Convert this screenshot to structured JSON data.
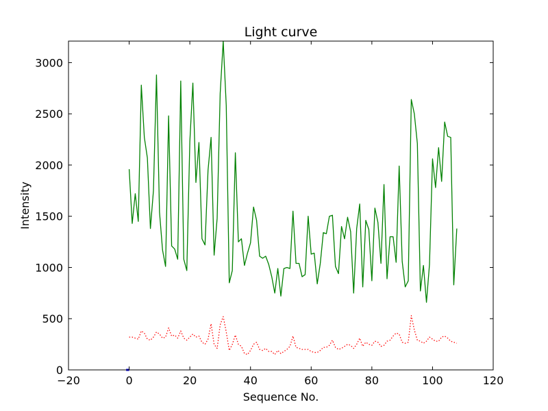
{
  "chart_data": {
    "type": "line",
    "title": "Light curve",
    "xlabel": "Sequence No.",
    "ylabel": "Intensity",
    "xlim": [
      -20,
      120
    ],
    "ylim": [
      0,
      3210
    ],
    "xticks": [
      -20,
      0,
      20,
      40,
      60,
      80,
      100,
      120
    ],
    "yticks": [
      0,
      500,
      1000,
      1500,
      2000,
      2500,
      3000
    ],
    "xtick_labels": [
      "−20",
      "0",
      "20",
      "40",
      "60",
      "80",
      "100",
      "120"
    ],
    "ytick_labels": [
      "0",
      "500",
      "1000",
      "1500",
      "2000",
      "2500",
      "3000"
    ],
    "grid": false,
    "legend": "none",
    "series": [
      {
        "style": "solid",
        "color": "#008000",
        "x": [
          0,
          1,
          2,
          3,
          4,
          5,
          6,
          7,
          8,
          9,
          10,
          11,
          12,
          13,
          14,
          15,
          16,
          17,
          18,
          19,
          20,
          21,
          22,
          23,
          24,
          25,
          26,
          27,
          28,
          29,
          30,
          31,
          32,
          33,
          34,
          35,
          36,
          37,
          38,
          39,
          40,
          41,
          42,
          43,
          44,
          45,
          46,
          47,
          48,
          49,
          50,
          51,
          52,
          53,
          54,
          55,
          56,
          57,
          58,
          59,
          60,
          61,
          62,
          63,
          64,
          65,
          66,
          67,
          68,
          69,
          70,
          71,
          72,
          73,
          74,
          75,
          76,
          77,
          78,
          79,
          80,
          81,
          82,
          83,
          84,
          85,
          86,
          87,
          88,
          89,
          90,
          91,
          92,
          93,
          94,
          95,
          96,
          97,
          98,
          99,
          100,
          101,
          102,
          103,
          104,
          105,
          106,
          107,
          108
        ],
        "y": [
          1960,
          1430,
          1720,
          1450,
          2780,
          2270,
          2070,
          1380,
          1750,
          2880,
          1540,
          1170,
          1010,
          2480,
          1210,
          1180,
          1080,
          2820,
          1080,
          970,
          2230,
          2800,
          1830,
          2220,
          1280,
          1220,
          1950,
          2270,
          1120,
          1480,
          2700,
          3210,
          2580,
          850,
          970,
          2120,
          1250,
          1280,
          1020,
          1140,
          1240,
          1590,
          1460,
          1110,
          1090,
          1110,
          1030,
          910,
          750,
          990,
          720,
          990,
          1000,
          990,
          1550,
          1040,
          1040,
          910,
          930,
          1500,
          1130,
          1140,
          840,
          1040,
          1340,
          1330,
          1500,
          1510,
          1010,
          940,
          1400,
          1280,
          1490,
          1350,
          750,
          1380,
          1620,
          810,
          1460,
          1370,
          870,
          1580,
          1440,
          1040,
          1810,
          890,
          1300,
          1300,
          1050,
          1990,
          1060,
          810,
          870,
          2640,
          2500,
          2210,
          770,
          1020,
          660,
          1030,
          2060,
          1780,
          2170,
          1840,
          2420,
          2280,
          2270,
          830,
          1380
        ]
      },
      {
        "style": "dotted",
        "color": "#ff0000",
        "x": [
          0,
          1,
          2,
          3,
          4,
          5,
          6,
          7,
          8,
          9,
          10,
          11,
          12,
          13,
          14,
          15,
          16,
          17,
          18,
          19,
          20,
          21,
          22,
          23,
          24,
          25,
          26,
          27,
          28,
          29,
          30,
          31,
          32,
          33,
          34,
          35,
          36,
          37,
          38,
          39,
          40,
          41,
          42,
          43,
          44,
          45,
          46,
          47,
          48,
          49,
          50,
          51,
          52,
          53,
          54,
          55,
          56,
          57,
          58,
          59,
          60,
          61,
          62,
          63,
          64,
          65,
          66,
          67,
          68,
          69,
          70,
          71,
          72,
          73,
          74,
          75,
          76,
          77,
          78,
          79,
          80,
          81,
          82,
          83,
          84,
          85,
          86,
          87,
          88,
          89,
          90,
          91,
          92,
          93,
          94,
          95,
          96,
          97,
          98,
          99,
          100,
          101,
          102,
          103,
          104,
          105,
          106,
          107,
          108
        ],
        "y": [
          320,
          320,
          310,
          300,
          380,
          360,
          300,
          290,
          320,
          370,
          350,
          310,
          320,
          410,
          330,
          340,
          310,
          380,
          310,
          290,
          320,
          350,
          320,
          330,
          270,
          250,
          300,
          450,
          250,
          210,
          440,
          520,
          370,
          190,
          250,
          340,
          250,
          230,
          160,
          150,
          190,
          250,
          270,
          200,
          190,
          210,
          180,
          180,
          150,
          190,
          160,
          180,
          200,
          230,
          330,
          220,
          210,
          200,
          200,
          200,
          180,
          170,
          170,
          190,
          220,
          220,
          240,
          290,
          220,
          200,
          210,
          230,
          250,
          240,
          210,
          250,
          310,
          230,
          270,
          250,
          240,
          280,
          270,
          230,
          240,
          280,
          290,
          330,
          360,
          350,
          270,
          260,
          270,
          530,
          390,
          290,
          280,
          260,
          280,
          320,
          300,
          280,
          280,
          320,
          330,
          310,
          280,
          270,
          260
        ]
      },
      {
        "style": "solid",
        "color": "#0000ff",
        "x": [
          -1,
          0
        ],
        "y": [
          0,
          0
        ]
      }
    ]
  }
}
